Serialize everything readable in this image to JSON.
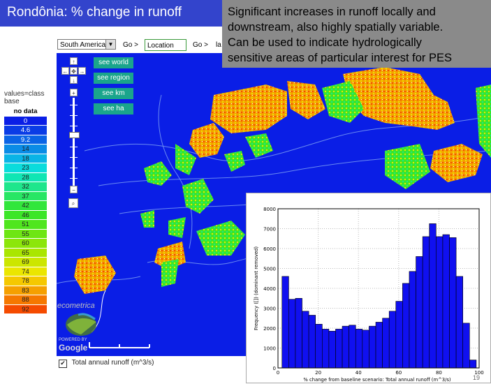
{
  "title": "Rondônia: % change in runoff",
  "callout_lines": [
    "Significant increases in runoff locally and",
    "downstream, also highly spatially variable.",
    "Can be used to indicate hydrologically",
    "sensitive areas of particular interest for PES"
  ],
  "controls": {
    "region_select": "South America",
    "go1": "Go >",
    "location_placeholder": "Location",
    "go2": "Go >",
    "go2_trailing": "la"
  },
  "view_buttons": [
    "see world",
    "see region",
    "see km",
    "see ha"
  ],
  "legend": {
    "caption_line1": "values=class",
    "caption_line2": "base",
    "items": [
      {
        "label": "no data",
        "color": "#ffffff"
      },
      {
        "label": "0",
        "color": "#0a1ee6"
      },
      {
        "label": "4.6",
        "color": "#0a3ce6"
      },
      {
        "label": "9.2",
        "color": "#0a64e6"
      },
      {
        "label": "14",
        "color": "#0a8ce6"
      },
      {
        "label": "18",
        "color": "#0ab4e6"
      },
      {
        "label": "23",
        "color": "#0adcdc"
      },
      {
        "label": "28",
        "color": "#10e6b4"
      },
      {
        "label": "32",
        "color": "#1ee68c"
      },
      {
        "label": "37",
        "color": "#28e664"
      },
      {
        "label": "42",
        "color": "#32e63c"
      },
      {
        "label": "46",
        "color": "#3ce628"
      },
      {
        "label": "51",
        "color": "#50e61e"
      },
      {
        "label": "55",
        "color": "#6ee614"
      },
      {
        "label": "60",
        "color": "#8ce60a"
      },
      {
        "label": "65",
        "color": "#aae600"
      },
      {
        "label": "69",
        "color": "#cce600"
      },
      {
        "label": "74",
        "color": "#ebe600"
      },
      {
        "label": "78",
        "color": "#f5c800"
      },
      {
        "label": "83",
        "color": "#f5a000"
      },
      {
        "label": "88",
        "color": "#f57800"
      },
      {
        "label": "92",
        "color": "#f54b00"
      }
    ]
  },
  "map_logo": "ecometrica",
  "powered_by": "POWERED BY",
  "google_logo": "Google",
  "layer_checkbox": {
    "checked": true,
    "check_glyph": "✔",
    "label": "Total annual runoff (m^3/s)"
  },
  "page_number": "19",
  "colors": {
    "map_blue": "#0a1ee6",
    "title_blue": "#3344cc",
    "callout_gray": "#8a8a8a",
    "see_button": "#1aa58c"
  },
  "chart_data": {
    "type": "bar",
    "xlabel": "% change from baseline scenario: Total annual runoff  (m^3/s)",
    "ylabel": "Frequency ([]) (dominant removed)",
    "xlim": [
      0,
      100
    ],
    "ylim": [
      0,
      8000
    ],
    "xticks": [
      0,
      20,
      40,
      60,
      80,
      100
    ],
    "yticks": [
      0,
      1000,
      2000,
      3000,
      4000,
      5000,
      6000,
      7000,
      8000
    ],
    "grid": true,
    "bin_start": 2,
    "bin_width": 3.33,
    "values": [
      4600,
      3450,
      3500,
      2850,
      2650,
      2200,
      1950,
      1850,
      1950,
      2100,
      2150,
      1950,
      1900,
      2100,
      2300,
      2500,
      2850,
      3350,
      4250,
      4850,
      5600,
      6600,
      7250,
      6600,
      6700,
      6550,
      4600,
      2250,
      400
    ]
  }
}
